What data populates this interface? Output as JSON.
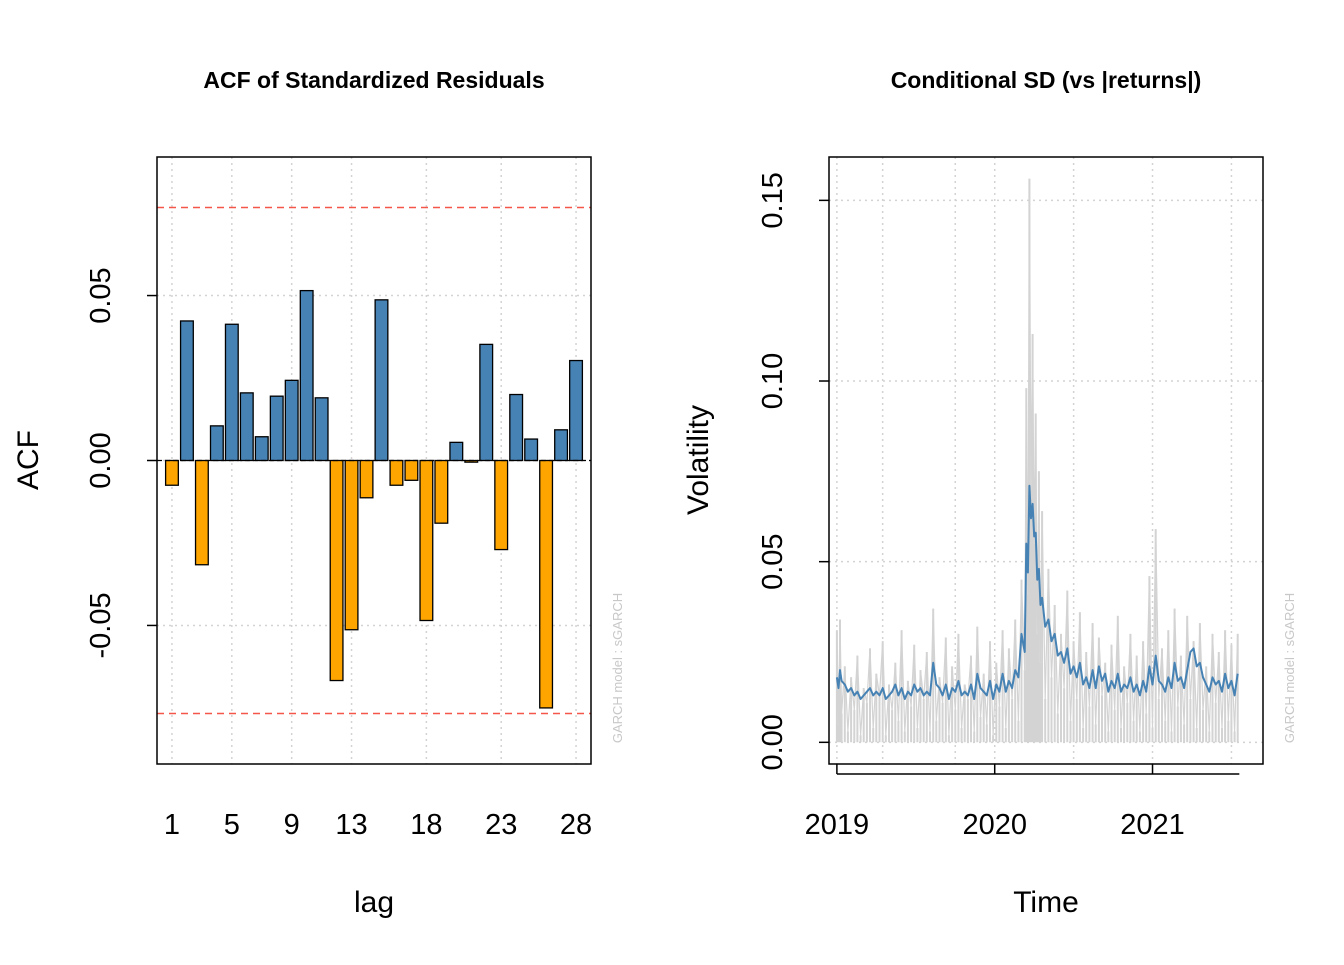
{
  "chart_data": [
    {
      "type": "bar",
      "title": "ACF of Standardized Residuals",
      "xlabel": "lag",
      "ylabel": "ACF",
      "xlim": [
        0,
        29
      ],
      "ylim": [
        -0.092,
        0.092
      ],
      "x_tick_labels": [
        "1",
        "5",
        "9",
        "13",
        "18",
        "23",
        "28"
      ],
      "y_tick_labels": [
        "-0.05",
        "0.00",
        "0.05"
      ],
      "y_tick_values": [
        -0.05,
        0,
        0.05
      ],
      "grid": true,
      "confidence_bounds": [
        -0.0767,
        0.0767
      ],
      "lags": [
        1,
        2,
        3,
        4,
        5,
        6,
        7,
        8,
        9,
        10,
        11,
        12,
        13,
        14,
        15,
        16,
        17,
        18,
        19,
        20,
        21,
        22,
        23,
        24,
        25,
        26,
        27,
        28
      ],
      "values": [
        -0.0075,
        0.0423,
        -0.0316,
        0.0105,
        0.0413,
        0.0205,
        0.0072,
        0.0195,
        0.0243,
        0.0515,
        0.019,
        -0.0667,
        -0.0513,
        -0.0113,
        0.0487,
        -0.0075,
        -0.006,
        -0.0485,
        -0.019,
        0.0055,
        -0.0005,
        0.0352,
        -0.027,
        0.02,
        0.0065,
        -0.075,
        0.0093,
        0.0303
      ],
      "colors": {
        "positive": "#4682b4",
        "negative": "#ffa500",
        "bound": "#f4564a",
        "grid": "#d3d3d3"
      },
      "note": "GARCH model :  sGARCH"
    },
    {
      "type": "line",
      "title": "Conditional SD (vs |returns|)",
      "xlabel": "Time",
      "ylabel": "Volatility",
      "xlim": [
        2018.95,
        2021.7
      ],
      "ylim": [
        -0.006,
        0.162
      ],
      "x_tick_labels": [
        "2019",
        "2020",
        "2021"
      ],
      "x_tick_values": [
        2019,
        2020,
        2021
      ],
      "y_tick_labels": [
        "0.00",
        "0.05",
        "0.10",
        "0.15"
      ],
      "y_tick_values": [
        0,
        0.05,
        0.1,
        0.15
      ],
      "grid": true,
      "series": [
        {
          "name": "|returns|",
          "color": "#d3d3d3",
          "x": [
            2019.0,
            2019.01,
            2019.02,
            2019.03,
            2019.05,
            2019.07,
            2019.09,
            2019.11,
            2019.13,
            2019.15,
            2019.17,
            2019.19,
            2019.21,
            2019.23,
            2019.25,
            2019.27,
            2019.29,
            2019.31,
            2019.33,
            2019.35,
            2019.37,
            2019.39,
            2019.41,
            2019.43,
            2019.45,
            2019.47,
            2019.49,
            2019.51,
            2019.53,
            2019.55,
            2019.57,
            2019.59,
            2019.61,
            2019.63,
            2019.65,
            2019.67,
            2019.69,
            2019.71,
            2019.73,
            2019.75,
            2019.77,
            2019.79,
            2019.81,
            2019.83,
            2019.85,
            2019.87,
            2019.89,
            2019.91,
            2019.93,
            2019.95,
            2019.97,
            2019.99,
            2020.01,
            2020.03,
            2020.05,
            2020.07,
            2020.09,
            2020.11,
            2020.13,
            2020.15,
            2020.17,
            2020.19,
            2020.2,
            2020.21,
            2020.22,
            2020.23,
            2020.24,
            2020.25,
            2020.26,
            2020.27,
            2020.28,
            2020.29,
            2020.3,
            2020.32,
            2020.34,
            2020.36,
            2020.38,
            2020.4,
            2020.42,
            2020.44,
            2020.46,
            2020.48,
            2020.5,
            2020.52,
            2020.54,
            2020.56,
            2020.58,
            2020.6,
            2020.62,
            2020.64,
            2020.66,
            2020.68,
            2020.7,
            2020.72,
            2020.74,
            2020.76,
            2020.78,
            2020.8,
            2020.82,
            2020.84,
            2020.86,
            2020.88,
            2020.9,
            2020.92,
            2020.94,
            2020.96,
            2020.98,
            2021.0,
            2021.02,
            2021.04,
            2021.06,
            2021.08,
            2021.1,
            2021.12,
            2021.14,
            2021.16,
            2021.18,
            2021.2,
            2021.22,
            2021.24,
            2021.26,
            2021.28,
            2021.3,
            2021.32,
            2021.34,
            2021.36,
            2021.38,
            2021.4,
            2021.42,
            2021.44,
            2021.46,
            2021.48,
            2021.5,
            2021.52,
            2021.54
          ],
          "values": [
            0.031,
            0.005,
            0.034,
            0.008,
            0.021,
            0.003,
            0.018,
            0.009,
            0.024,
            0.002,
            0.015,
            0.011,
            0.026,
            0.004,
            0.019,
            0.013,
            0.028,
            0.002,
            0.016,
            0.009,
            0.022,
            0.006,
            0.031,
            0.003,
            0.017,
            0.01,
            0.027,
            0.004,
            0.02,
            0.012,
            0.025,
            0.003,
            0.037,
            0.006,
            0.018,
            0.011,
            0.029,
            0.002,
            0.021,
            0.009,
            0.03,
            0.004,
            0.016,
            0.012,
            0.024,
            0.003,
            0.032,
            0.007,
            0.019,
            0.005,
            0.028,
            0.002,
            0.022,
            0.01,
            0.031,
            0.004,
            0.026,
            0.012,
            0.034,
            0.006,
            0.045,
            0.02,
            0.098,
            0.041,
            0.156,
            0.07,
            0.113,
            0.055,
            0.091,
            0.03,
            0.075,
            0.022,
            0.064,
            0.012,
            0.048,
            0.018,
            0.038,
            0.008,
            0.03,
            0.015,
            0.042,
            0.006,
            0.028,
            0.012,
            0.036,
            0.004,
            0.025,
            0.01,
            0.033,
            0.005,
            0.029,
            0.013,
            0.022,
            0.003,
            0.027,
            0.009,
            0.035,
            0.004,
            0.021,
            0.011,
            0.03,
            0.006,
            0.024,
            0.003,
            0.028,
            0.008,
            0.046,
            0.004,
            0.059,
            0.012,
            0.026,
            0.006,
            0.031,
            0.003,
            0.037,
            0.01,
            0.024,
            0.005,
            0.035,
            0.012,
            0.028,
            0.004,
            0.033,
            0.009,
            0.021,
            0.003,
            0.03,
            0.011,
            0.025,
            0.004,
            0.031,
            0.006,
            0.027,
            0.003,
            0.03
          ],
          "plot": "histogram-like vertical spikes"
        },
        {
          "name": "Conditional SD",
          "color": "#4682b4",
          "x": [
            2019.0,
            2019.01,
            2019.02,
            2019.03,
            2019.05,
            2019.07,
            2019.09,
            2019.11,
            2019.13,
            2019.15,
            2019.17,
            2019.19,
            2019.21,
            2019.23,
            2019.25,
            2019.27,
            2019.29,
            2019.31,
            2019.33,
            2019.35,
            2019.37,
            2019.39,
            2019.41,
            2019.43,
            2019.45,
            2019.47,
            2019.49,
            2019.51,
            2019.53,
            2019.55,
            2019.57,
            2019.59,
            2019.61,
            2019.63,
            2019.65,
            2019.67,
            2019.69,
            2019.71,
            2019.73,
            2019.75,
            2019.77,
            2019.79,
            2019.81,
            2019.83,
            2019.85,
            2019.87,
            2019.89,
            2019.91,
            2019.93,
            2019.95,
            2019.97,
            2019.99,
            2020.01,
            2020.03,
            2020.05,
            2020.07,
            2020.09,
            2020.11,
            2020.13,
            2020.15,
            2020.17,
            2020.19,
            2020.2,
            2020.21,
            2020.22,
            2020.23,
            2020.24,
            2020.25,
            2020.26,
            2020.27,
            2020.28,
            2020.29,
            2020.3,
            2020.32,
            2020.34,
            2020.36,
            2020.38,
            2020.4,
            2020.42,
            2020.44,
            2020.46,
            2020.48,
            2020.5,
            2020.52,
            2020.54,
            2020.56,
            2020.58,
            2020.6,
            2020.62,
            2020.64,
            2020.66,
            2020.68,
            2020.7,
            2020.72,
            2020.74,
            2020.76,
            2020.78,
            2020.8,
            2020.82,
            2020.84,
            2020.86,
            2020.88,
            2020.9,
            2020.92,
            2020.94,
            2020.96,
            2020.98,
            2021.0,
            2021.02,
            2021.04,
            2021.06,
            2021.08,
            2021.1,
            2021.12,
            2021.14,
            2021.16,
            2021.18,
            2021.2,
            2021.22,
            2021.24,
            2021.26,
            2021.28,
            2021.3,
            2021.32,
            2021.34,
            2021.36,
            2021.38,
            2021.4,
            2021.42,
            2021.44,
            2021.46,
            2021.48,
            2021.5,
            2021.52,
            2021.54
          ],
          "values": [
            0.018,
            0.015,
            0.02,
            0.017,
            0.016,
            0.014,
            0.015,
            0.013,
            0.014,
            0.012,
            0.013,
            0.014,
            0.015,
            0.013,
            0.014,
            0.013,
            0.015,
            0.012,
            0.013,
            0.014,
            0.016,
            0.013,
            0.015,
            0.012,
            0.014,
            0.013,
            0.016,
            0.014,
            0.015,
            0.013,
            0.014,
            0.013,
            0.022,
            0.016,
            0.015,
            0.013,
            0.016,
            0.012,
            0.015,
            0.014,
            0.017,
            0.013,
            0.014,
            0.013,
            0.016,
            0.012,
            0.019,
            0.015,
            0.014,
            0.013,
            0.017,
            0.012,
            0.016,
            0.014,
            0.019,
            0.014,
            0.017,
            0.015,
            0.02,
            0.018,
            0.03,
            0.025,
            0.055,
            0.047,
            0.071,
            0.062,
            0.066,
            0.057,
            0.058,
            0.045,
            0.048,
            0.038,
            0.04,
            0.032,
            0.034,
            0.028,
            0.03,
            0.024,
            0.025,
            0.022,
            0.026,
            0.019,
            0.021,
            0.018,
            0.022,
            0.016,
            0.018,
            0.015,
            0.02,
            0.015,
            0.021,
            0.017,
            0.019,
            0.014,
            0.017,
            0.015,
            0.019,
            0.014,
            0.016,
            0.015,
            0.018,
            0.014,
            0.016,
            0.013,
            0.017,
            0.014,
            0.021,
            0.016,
            0.024,
            0.017,
            0.016,
            0.014,
            0.018,
            0.015,
            0.022,
            0.017,
            0.018,
            0.015,
            0.02,
            0.025,
            0.026,
            0.021,
            0.022,
            0.018,
            0.016,
            0.014,
            0.018,
            0.016,
            0.017,
            0.014,
            0.019,
            0.015,
            0.017,
            0.013,
            0.019
          ]
        }
      ],
      "note": "GARCH model :  sGARCH"
    }
  ]
}
